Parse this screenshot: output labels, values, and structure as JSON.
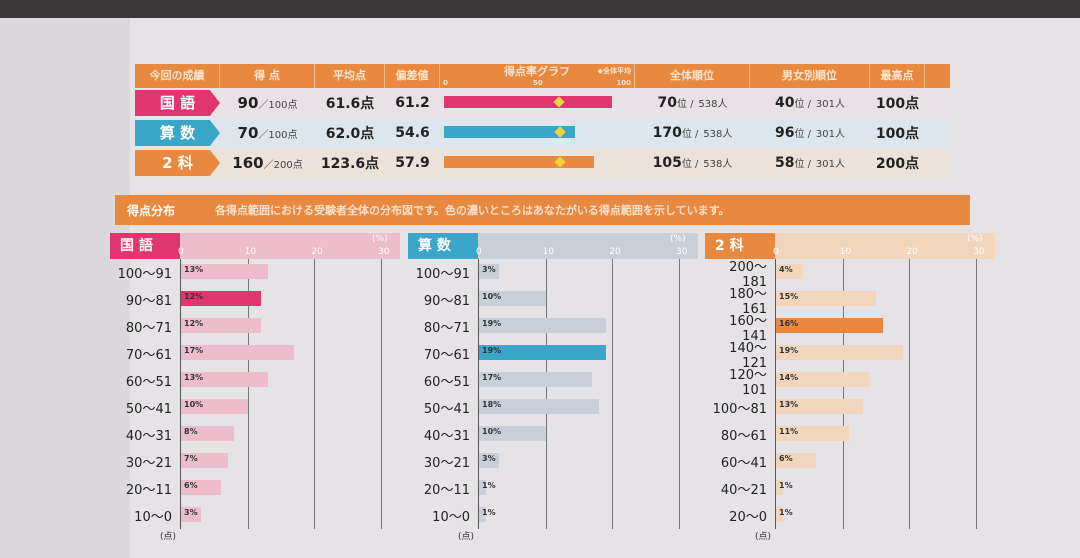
{
  "summary": {
    "headers": {
      "label": "今回の成績",
      "score": "得 点",
      "avg": "平均点",
      "dev": "偏差値",
      "graph": "得点率グラフ",
      "graph_ticks": [
        "0",
        "50",
        "100"
      ],
      "graph_legend": "◆全体平均",
      "rank_all": "全体順位",
      "rank_gender": "男女別順位",
      "max": "最高点"
    },
    "rows": [
      {
        "subject": "国 語",
        "color": "#e0356f",
        "score": "90",
        "full": "／100点",
        "avg": "61.6点",
        "dev": "61.2",
        "rate_pct": 90,
        "avg_pct": 61.6,
        "rank": "70",
        "rank_unit": "位 /",
        "total": "538人",
        "grank": "40",
        "grank_unit": "位 /",
        "gtotal": "301人",
        "max": "100点"
      },
      {
        "subject": "算 数",
        "color": "#3aa6c8",
        "score": "70",
        "full": "／100点",
        "avg": "62.0点",
        "dev": "54.6",
        "rate_pct": 70,
        "avg_pct": 62.0,
        "rank": "170",
        "rank_unit": "位 /",
        "total": "538人",
        "grank": "96",
        "grank_unit": "位 /",
        "gtotal": "301人",
        "max": "100点"
      },
      {
        "subject": "2 科",
        "color": "#e8893f",
        "score": "160",
        "full": "／200点",
        "avg": "123.6点",
        "dev": "57.9",
        "rate_pct": 80,
        "avg_pct": 61.8,
        "rank": "105",
        "rank_unit": "位 /",
        "total": "538人",
        "grank": "58",
        "grank_unit": "位 /",
        "gtotal": "301人",
        "max": "200点"
      }
    ]
  },
  "distribution": {
    "title": "得点分布",
    "description": "各得点範囲における受験者全体の分布図です。色の濃いところはあなたがいる得点範囲を示しています。",
    "unit_pct": "(%)",
    "unit_pts": "(点)"
  },
  "chart_data": [
    {
      "type": "bar",
      "orientation": "horizontal",
      "title": "国 語",
      "xlim": [
        0,
        30
      ],
      "xticks": [
        "0",
        "10",
        "20",
        "30"
      ],
      "color": "#e0356f",
      "light_color": "#eebdcb",
      "categories": [
        "100～91",
        "90～81",
        "80～71",
        "70～61",
        "60～51",
        "50～41",
        "40～31",
        "30～21",
        "20～11",
        "10～0"
      ],
      "values": [
        13,
        12,
        12,
        17,
        13,
        10,
        8,
        7,
        6,
        3
      ],
      "highlight": "90～81"
    },
    {
      "type": "bar",
      "orientation": "horizontal",
      "title": "算 数",
      "xlim": [
        0,
        30
      ],
      "xticks": [
        "0",
        "10",
        "20",
        "30"
      ],
      "color": "#3aa6c8",
      "light_color": "#c9cfd8",
      "categories": [
        "100～91",
        "90～81",
        "80～71",
        "70～61",
        "60～51",
        "50～41",
        "40～31",
        "30～21",
        "20～11",
        "10～0"
      ],
      "values": [
        3,
        10,
        19,
        19,
        17,
        18,
        10,
        3,
        1,
        1
      ],
      "highlight": "70～61"
    },
    {
      "type": "bar",
      "orientation": "horizontal",
      "title": "2 科",
      "xlim": [
        0,
        30
      ],
      "xticks": [
        "0",
        "10",
        "20",
        "30"
      ],
      "color": "#e8893f",
      "light_color": "#f1d6bd",
      "categories": [
        "200～181",
        "180～161",
        "160～141",
        "140～121",
        "120～101",
        "100～81",
        "80～61",
        "60～41",
        "40～21",
        "20～0"
      ],
      "values": [
        4,
        15,
        16,
        19,
        14,
        13,
        11,
        6,
        1,
        1
      ],
      "highlight": "160～141"
    }
  ]
}
